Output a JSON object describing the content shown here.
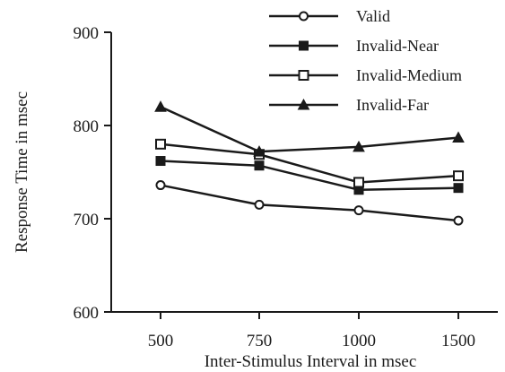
{
  "chart_data": {
    "type": "line",
    "xlabel": "Inter-Stimulus Interval in msec",
    "ylabel": "Response Time in msec",
    "categories": [
      "500",
      "750",
      "1000",
      "1500"
    ],
    "ylim": [
      600,
      900
    ],
    "yticks": [
      600,
      700,
      800,
      900
    ],
    "grid": false,
    "legend_position": "top-right",
    "series": [
      {
        "name": "Valid",
        "marker": "circle-open",
        "values": [
          736,
          715,
          709,
          698
        ]
      },
      {
        "name": "Invalid-Near",
        "marker": "square-filled",
        "values": [
          762,
          757,
          731,
          733
        ]
      },
      {
        "name": "Invalid-Medium",
        "marker": "square-open",
        "values": [
          780,
          769,
          739,
          746
        ]
      },
      {
        "name": "Invalid-Far",
        "marker": "triangle-filled",
        "values": [
          820,
          772,
          777,
          787
        ]
      }
    ],
    "colors": {
      "ink": "#1a1a1a",
      "background": "#ffffff"
    }
  }
}
